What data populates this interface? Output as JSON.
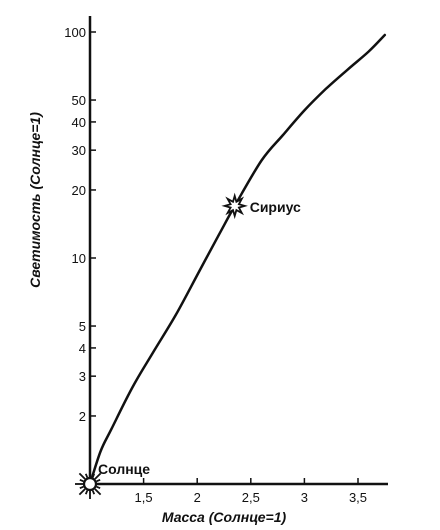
{
  "chart_data": {
    "type": "line",
    "xlabel": "Масса (Солнце=1)",
    "ylabel": "Светимость (Солнце=1)",
    "x_scale": "linear",
    "y_scale": "log",
    "xlim": [
      1.0,
      3.75
    ],
    "ylim": [
      1,
      100
    ],
    "x_ticks": [
      {
        "value": 1.5,
        "label": "1,5"
      },
      {
        "value": 2,
        "label": "2"
      },
      {
        "value": 2.5,
        "label": "2,5"
      },
      {
        "value": 3,
        "label": "3"
      },
      {
        "value": 3.5,
        "label": "3,5"
      }
    ],
    "y_ticks": [
      {
        "value": 2,
        "label": "2"
      },
      {
        "value": 3,
        "label": "3"
      },
      {
        "value": 4,
        "label": "4"
      },
      {
        "value": 5,
        "label": "5"
      },
      {
        "value": 10,
        "label": "10"
      },
      {
        "value": 20,
        "label": "20"
      },
      {
        "value": 30,
        "label": "30"
      },
      {
        "value": 40,
        "label": "40"
      },
      {
        "value": 50,
        "label": "50"
      },
      {
        "value": 100,
        "label": "100"
      }
    ],
    "grid": false,
    "legend": "none",
    "series": [
      {
        "x": [
          1.0,
          1.1,
          1.2,
          1.4,
          1.6,
          1.8,
          2.0,
          2.2,
          2.35,
          2.6,
          2.8,
          3.0,
          3.2,
          3.4,
          3.6,
          3.75
        ],
        "y": [
          1.0,
          1.4,
          1.75,
          2.7,
          3.9,
          5.6,
          8.4,
          12.6,
          17,
          27,
          35,
          45,
          56,
          68,
          82,
          97
        ]
      }
    ],
    "annotations": [
      {
        "label": "Солнце",
        "x": 1.0,
        "y": 1.0,
        "marker": "sun"
      },
      {
        "label": "Сириус",
        "x": 2.35,
        "y": 17,
        "marker": "star"
      }
    ]
  }
}
